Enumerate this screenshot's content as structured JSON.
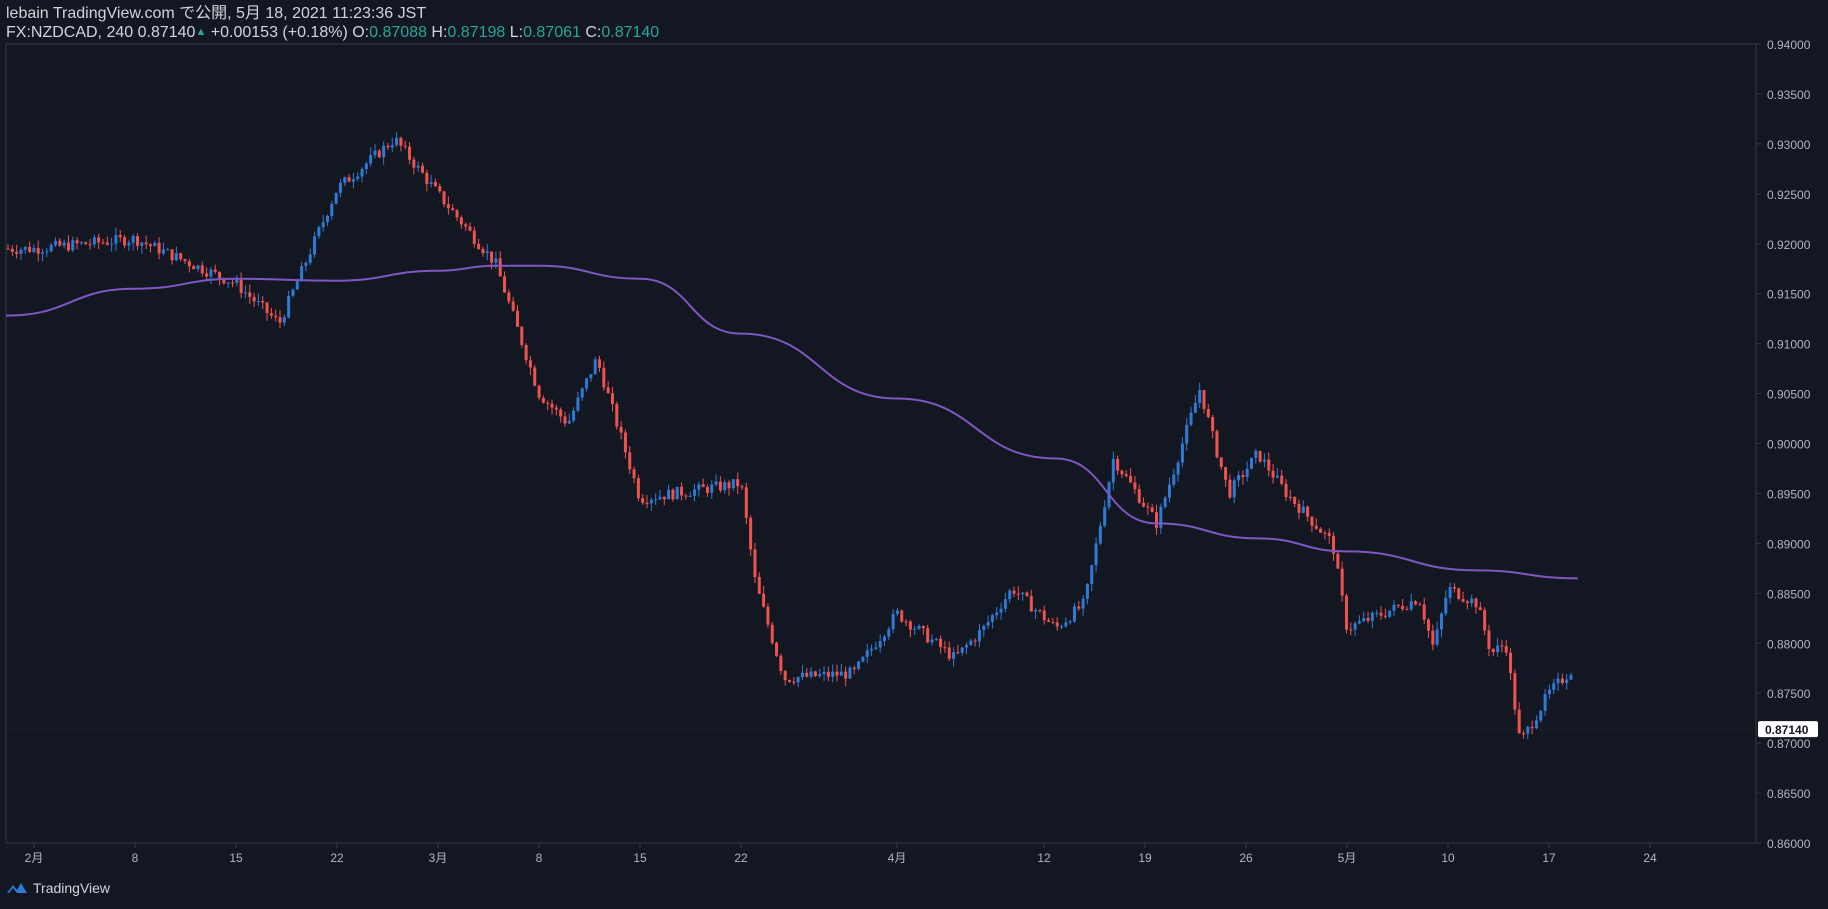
{
  "header": {
    "publish": "lebain TradingView.com で公開, 5月 18, 2021 11:23:36 JST",
    "symbol": "FX:NZDCAD, 240",
    "last": "0.87140",
    "change": "+0.00153 (+0.18%)",
    "o_label": "O:",
    "o": "0.87088",
    "h_label": "H:",
    "h": "0.87198",
    "l_label": "L:",
    "l": "0.87061",
    "c_label": "C:",
    "c": "0.87140"
  },
  "footer": {
    "brand": "TradingView",
    "logo_icon": "tradingview-logo-icon"
  },
  "colors": {
    "background": "#131722",
    "up": "#2e7bd6",
    "down": "#ef5350",
    "ma": "#7e57c2",
    "axis_text": "#b2b5be",
    "axis_line": "#363a45",
    "price_badge_bg": "#ffffff",
    "price_badge_text": "#131722"
  },
  "chart_data": {
    "type": "candlestick",
    "symbol": "FX:NZDCAD",
    "interval": "240",
    "y_ticks": [
      "0.94000",
      "0.93500",
      "0.93000",
      "0.92500",
      "0.92000",
      "0.91500",
      "0.91000",
      "0.90500",
      "0.90000",
      "0.89500",
      "0.89000",
      "0.88500",
      "0.88000",
      "0.87500",
      "0.87000",
      "0.86500",
      "0.86000"
    ],
    "y_range": [
      0.86,
      0.94
    ],
    "x_ticks": [
      "2月",
      "8",
      "15",
      "22",
      "3月",
      "8",
      "15",
      "22",
      "4月",
      "12",
      "19",
      "26",
      "5月",
      "10",
      "17",
      "24"
    ],
    "current_price": "0.87140",
    "close_path": [
      [
        "2月",
        0.9195
      ],
      [
        "8",
        0.9205
      ],
      [
        "15",
        0.916
      ],
      [
        "18",
        0.912
      ],
      [
        "22",
        0.9255
      ],
      [
        "26",
        0.9305
      ],
      [
        "3月",
        0.925
      ],
      [
        "5",
        0.918
      ],
      [
        "8",
        0.905
      ],
      [
        "10",
        0.902
      ],
      [
        "12",
        0.9085
      ],
      [
        "15",
        0.8945
      ],
      [
        "22",
        0.896
      ],
      [
        "23",
        0.886
      ],
      [
        "25",
        0.8765
      ],
      [
        "29",
        0.877
      ],
      [
        "4月",
        0.883
      ],
      [
        "5",
        0.8785
      ],
      [
        "7",
        0.8815
      ],
      [
        "9",
        0.8855
      ],
      [
        "12",
        0.8815
      ],
      [
        "14",
        0.884
      ],
      [
        "16",
        0.8985
      ],
      [
        "19",
        0.892
      ],
      [
        "22",
        0.9055
      ],
      [
        "23",
        0.9
      ],
      [
        "24",
        0.895
      ],
      [
        "26",
        0.899
      ],
      [
        "28",
        0.895
      ],
      [
        "30",
        0.89
      ],
      [
        "5月",
        0.8815
      ],
      [
        "6",
        0.8845
      ],
      [
        "7",
        0.8795
      ],
      [
        "8",
        0.8855
      ],
      [
        "10",
        0.884
      ],
      [
        "11",
        0.879
      ],
      [
        "12",
        0.88
      ],
      [
        "13",
        0.87
      ],
      [
        "15",
        0.875
      ],
      [
        "17",
        0.878
      ],
      [
        "18",
        0.8714
      ]
    ],
    "ma_path": [
      [
        "2月",
        0.9128
      ],
      [
        "8",
        0.9155
      ],
      [
        "15",
        0.9165
      ],
      [
        "22",
        0.9163
      ],
      [
        "3月",
        0.9173
      ],
      [
        "5",
        0.9178
      ],
      [
        "8",
        0.9178
      ],
      [
        "15",
        0.9165
      ],
      [
        "22",
        0.911
      ],
      [
        "4月",
        0.9045
      ],
      [
        "12",
        0.8985
      ],
      [
        "19",
        0.892
      ],
      [
        "26",
        0.8905
      ],
      [
        "5月",
        0.8892
      ],
      [
        "10",
        0.8873
      ],
      [
        "17",
        0.8865
      ]
    ]
  }
}
